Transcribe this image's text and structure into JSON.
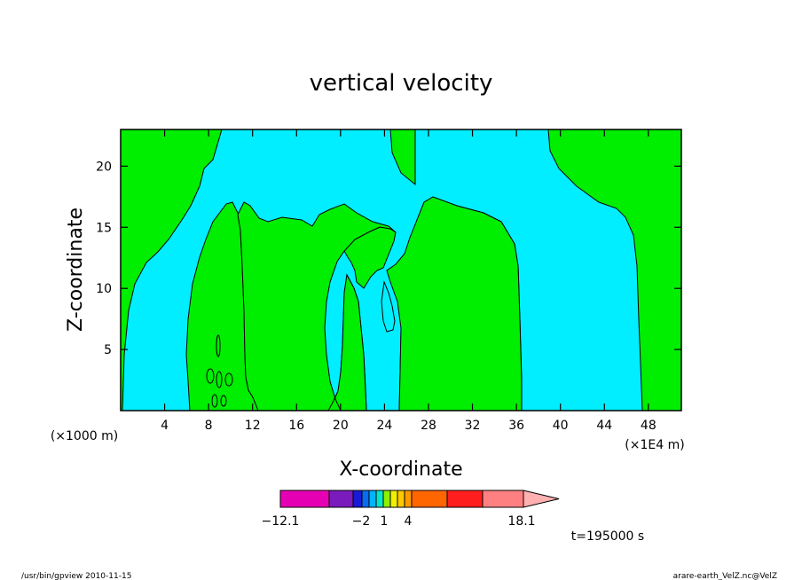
{
  "chart_data": {
    "type": "heatmap",
    "title": "vertical velocity",
    "xlabel": "X-coordinate",
    "ylabel": "Z-coordinate",
    "x_unit_left": "(×1000 m)",
    "x_unit_right": "(×1E4 m)",
    "xlim": [
      0,
      51
    ],
    "ylim": [
      0,
      23
    ],
    "xticks": [
      4,
      8,
      12,
      16,
      20,
      24,
      28,
      32,
      36,
      40,
      44,
      48
    ],
    "yticks": [
      5,
      10,
      15,
      20
    ],
    "colors": {
      "positive_fill": "#00ee00",
      "negative_fill": "#00eeff",
      "contour": "#000000"
    },
    "colorbar": {
      "bins": [
        "#e600b4",
        "#7a1cbd",
        "#1a1ad6",
        "#0a6cf0",
        "#00b4ff",
        "#00e8c8",
        "#8cf000",
        "#f0f000",
        "#ffc800",
        "#ff9900",
        "#ff6600",
        "#ff1e1e",
        "#ff8080",
        "#ffb0b0"
      ],
      "labels": [
        "−12.1",
        "−2",
        "1",
        "4",
        "18.1"
      ]
    },
    "time_label": "t=195000 s"
  },
  "footer": {
    "left": "/usr/bin/gpview   2010-11-15",
    "right": "arare-earth_VelZ.nc@VelZ"
  }
}
